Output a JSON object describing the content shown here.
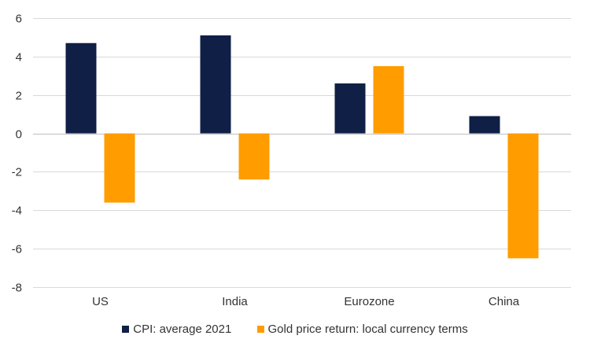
{
  "chart_data": {
    "type": "bar",
    "title": "",
    "xlabel": "",
    "ylabel": "",
    "categories": [
      "US",
      "India",
      "Eurozone",
      "China"
    ],
    "series": [
      {
        "name": "CPI: average 2021",
        "color": "#0f1f45",
        "values": [
          4.7,
          5.1,
          2.6,
          0.9
        ]
      },
      {
        "name": "Gold price return: local currency terms",
        "color": "#ff9c00",
        "values": [
          -3.6,
          -2.4,
          3.5,
          -6.5
        ]
      }
    ],
    "ylim": [
      -8,
      6
    ],
    "yticks": [
      6,
      4,
      2,
      0,
      -2,
      -4,
      -6,
      -8
    ],
    "ytick_labels": [
      "6",
      "4",
      "2",
      "0",
      "-2",
      "-4",
      "-6",
      "-8"
    ],
    "grid": true,
    "legend_position": "bottom"
  }
}
